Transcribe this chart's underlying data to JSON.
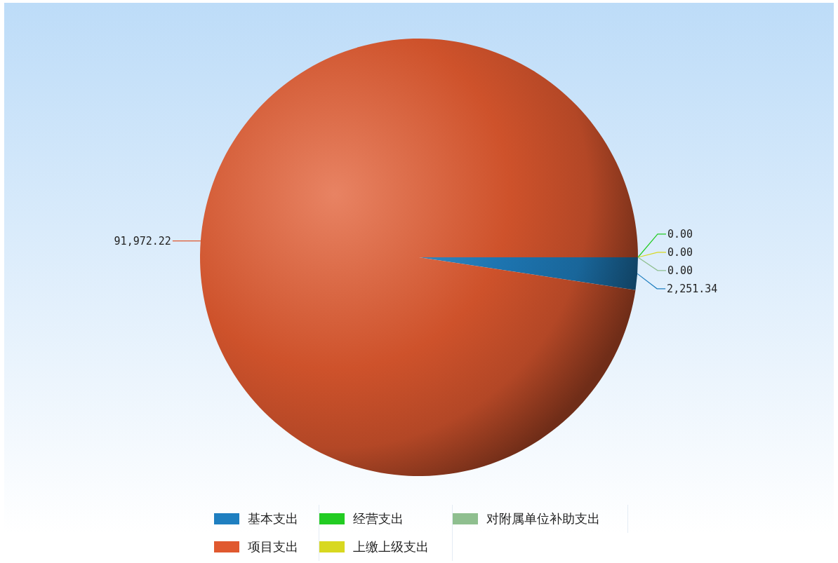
{
  "chart_data": {
    "type": "pie",
    "categories": [
      "基本支出",
      "项目支出",
      "经营支出",
      "上缴上级支出",
      "对附属单位补助支出"
    ],
    "values": [
      2251.34,
      91972.22,
      0,
      0,
      0
    ],
    "colors": [
      "#1f7fc0",
      "#e0592f",
      "#22cc22",
      "#d8d820",
      "#8fbf8f"
    ],
    "value_labels": [
      "2,251.34",
      "91,972.22",
      "0.00",
      "0.00",
      "0.00"
    ],
    "legend": "bottom"
  }
}
